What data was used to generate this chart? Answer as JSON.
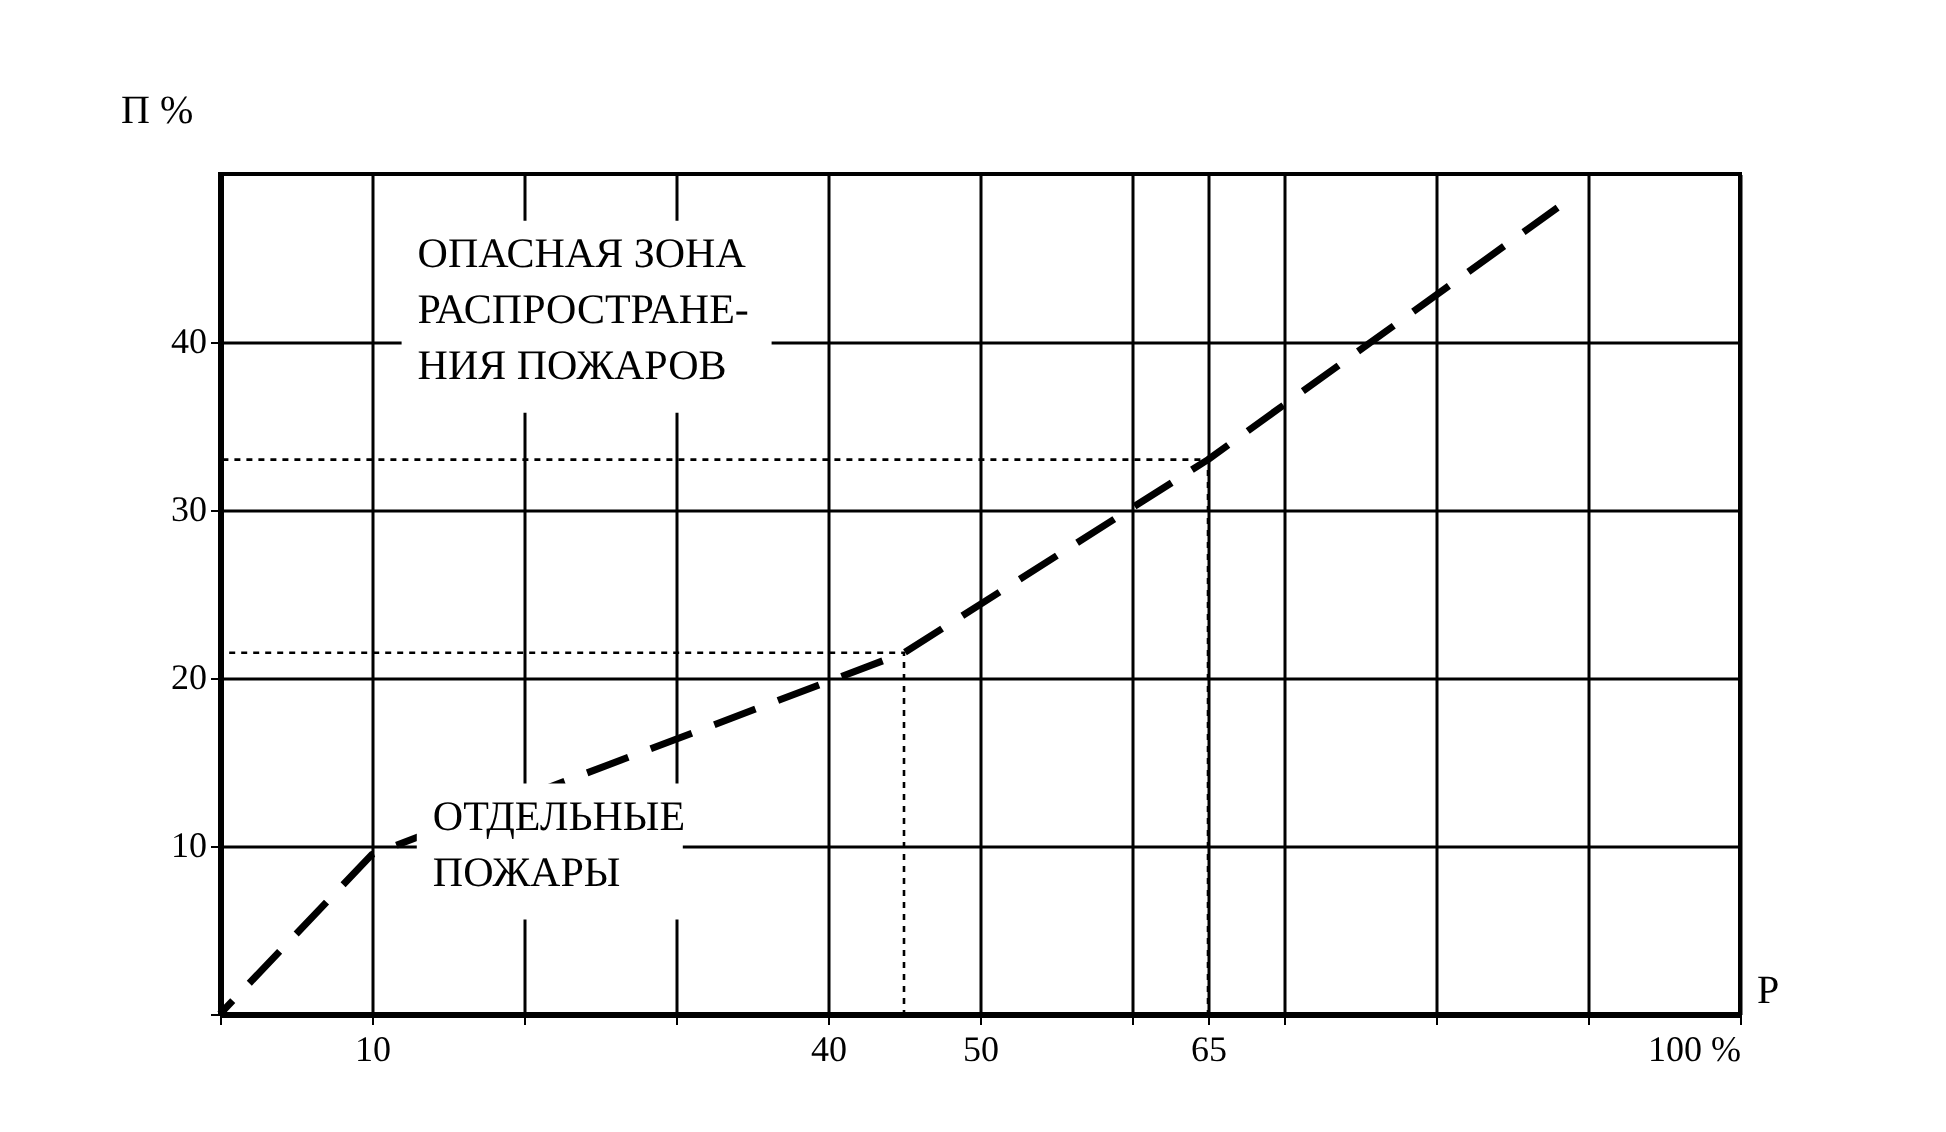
{
  "chart_data": {
    "type": "line",
    "xlabel": "P",
    "ylabel": "П %",
    "xlim": [
      0,
      100
    ],
    "ylim": [
      0,
      50
    ],
    "xticks": [
      {
        "value": 0,
        "label": null
      },
      10,
      {
        "value": 20,
        "label": null
      },
      {
        "value": 30,
        "label": null
      },
      40,
      50,
      {
        "value": 60,
        "label": null
      },
      65,
      {
        "value": 70,
        "label": null
      },
      {
        "value": 80,
        "label": null
      },
      {
        "value": 90,
        "label": null
      },
      {
        "value": 100,
        "label": "100 %"
      }
    ],
    "yticks": [
      {
        "value": 0,
        "label": null
      },
      10,
      20,
      30,
      40
    ],
    "grid": true,
    "series": [
      {
        "color": "#000000",
        "line_style": "dashed",
        "x": [
          0,
          10,
          45,
          65,
          88
        ],
        "values": [
          0,
          9.5,
          21.5,
          33,
          48
        ]
      },
      {
        "color": "#000000",
        "line_style": "dotted",
        "x": [
          0,
          45,
          45
        ],
        "values": [
          21.5,
          21.5,
          0
        ]
      },
      {
        "color": "#000000",
        "line_style": "dotted",
        "x": [
          0,
          65,
          65
        ],
        "values": [
          33,
          33,
          0
        ]
      }
    ],
    "annotations": [
      "ОПАСНАЯ ЗОНА\nРАСПРОСТРАНЕ-\nНИЯ ПОЖАРОВ",
      "ОТДЕЛЬНЫЕ\nПОЖАРЫ"
    ]
  }
}
